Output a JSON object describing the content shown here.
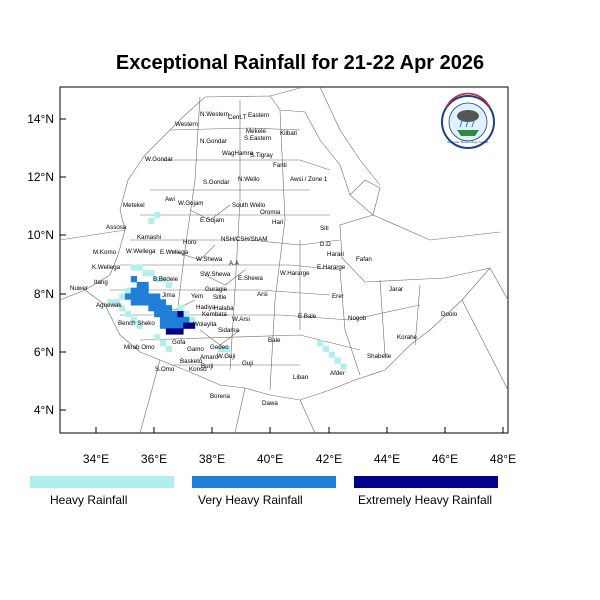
{
  "title": "Exceptional Rainfall for 21-22 Apr 2026",
  "axes": {
    "lat_ticks": [
      "14°N",
      "12°N",
      "10°N",
      "8°N",
      "6°N",
      "4°N"
    ],
    "lon_ticks": [
      "34°E",
      "36°E",
      "38°E",
      "40°E",
      "42°E",
      "44°E",
      "46°E",
      "48°E"
    ]
  },
  "legend": [
    {
      "label": "Heavy Rainfall",
      "color": "#b2eeee"
    },
    {
      "label": "Very Heavy Rainfall",
      "color": "#1f7fd8"
    },
    {
      "label": "Extremely Heavy Rainfall",
      "color": "#00008b"
    }
  ],
  "logo": {
    "text": "Ethiopian Meteorology Institute"
  },
  "zones": [
    "Western",
    "N.Western",
    "Cent.T",
    "Eastern",
    "Mekele",
    "S.Eastern",
    "Kilbati",
    "N.Gondar",
    "W.Gondar",
    "WagHamra",
    "S.Tigray",
    "Fanti",
    "S.Gondar",
    "Awsi / Zone 1",
    "N.Wello",
    "Metekel",
    "Awi",
    "W.Gojam",
    "South Wello",
    "E.Gojam",
    "Oromia",
    "Hari",
    "Assosa",
    "Kamashi",
    "Horo",
    "NSH/CSH/ShAM",
    "Siti",
    "D.D",
    "Harari",
    "Fafan",
    "M.Komo",
    "W.Wellega",
    "E.Wellega",
    "W.Shewa",
    "K.Wellega",
    "A.A",
    "E.Shewa",
    "W.Hararge",
    "E.Hararge",
    "Nuwer",
    "Itang",
    "B.Bedele",
    "SW.Shewa",
    "Guragie",
    "Arsi",
    "Erer",
    "Jarar",
    "Agnewak",
    "Jima",
    "Yem",
    "Siltie",
    "Hadiya",
    "Halaba",
    "Kembata",
    "Bench Sheko",
    "W.Arsi",
    "E.Bale",
    "Nogob",
    "Doolo",
    "Korahe",
    "Wolayita",
    "Sidama",
    "Gofa",
    "Bale",
    "Shabelle",
    "Mirab Omo",
    "Gedeo",
    "Amaro",
    "W.Guji",
    "Basketo",
    "Gamo",
    "Konso",
    "Burji",
    "S.Omo",
    "Guji",
    "Liban",
    "Afder",
    "Borena",
    "Dawa"
  ],
  "rain_cells": [
    [
      35.3,
      8.9,
      "heavy"
    ],
    [
      35.5,
      8.9,
      "heavy"
    ],
    [
      35.7,
      8.7,
      "heavy"
    ],
    [
      35.9,
      8.7,
      "heavy"
    ],
    [
      36.1,
      8.5,
      "heavy"
    ],
    [
      36.3,
      8.5,
      "heavy"
    ],
    [
      36.5,
      8.3,
      "heavy"
    ],
    [
      35.1,
      8.1,
      "heavy"
    ],
    [
      34.9,
      7.9,
      "heavy"
    ],
    [
      34.7,
      7.7,
      "heavy"
    ],
    [
      34.9,
      7.5,
      "heavy"
    ],
    [
      35.1,
      7.3,
      "heavy"
    ],
    [
      35.3,
      7.1,
      "heavy"
    ],
    [
      35.5,
      6.9,
      "heavy"
    ],
    [
      36.9,
      7.5,
      "heavy"
    ],
    [
      37.1,
      7.3,
      "heavy"
    ],
    [
      37.3,
      7.1,
      "heavy"
    ],
    [
      36.1,
      6.5,
      "heavy"
    ],
    [
      36.3,
      6.3,
      "heavy"
    ],
    [
      36.5,
      6.1,
      "heavy"
    ],
    [
      38.3,
      6.1,
      "heavy"
    ],
    [
      38.5,
      6.1,
      "heavy"
    ],
    [
      41.7,
      6.3,
      "heavy"
    ],
    [
      41.9,
      6.1,
      "heavy"
    ],
    [
      42.1,
      5.9,
      "heavy"
    ],
    [
      42.3,
      5.7,
      "heavy"
    ],
    [
      42.5,
      5.5,
      "heavy"
    ],
    [
      35.9,
      10.5,
      "heavy"
    ],
    [
      36.1,
      10.7,
      "heavy"
    ],
    [
      34.5,
      7.7,
      "heavy"
    ],
    [
      35.3,
      8.5,
      "very"
    ],
    [
      35.5,
      8.3,
      "very"
    ],
    [
      35.7,
      8.3,
      "very"
    ],
    [
      35.5,
      8.1,
      "very"
    ],
    [
      35.3,
      8.1,
      "very"
    ],
    [
      35.3,
      7.9,
      "very"
    ],
    [
      35.5,
      7.9,
      "very"
    ],
    [
      35.7,
      7.9,
      "very"
    ],
    [
      35.7,
      7.7,
      "very"
    ],
    [
      35.9,
      7.7,
      "very"
    ],
    [
      35.9,
      7.9,
      "very"
    ],
    [
      36.1,
      7.9,
      "very"
    ],
    [
      36.1,
      7.7,
      "very"
    ],
    [
      36.3,
      7.7,
      "very"
    ],
    [
      36.3,
      7.5,
      "very"
    ],
    [
      36.1,
      7.5,
      "very"
    ],
    [
      35.9,
      7.5,
      "very"
    ],
    [
      36.1,
      7.3,
      "very"
    ],
    [
      36.3,
      7.3,
      "very"
    ],
    [
      36.5,
      7.3,
      "very"
    ],
    [
      36.5,
      7.1,
      "very"
    ],
    [
      36.3,
      7.1,
      "very"
    ],
    [
      36.7,
      7.1,
      "very"
    ],
    [
      36.7,
      6.9,
      "very"
    ],
    [
      36.5,
      6.9,
      "very"
    ],
    [
      36.9,
      7.1,
      "very"
    ],
    [
      36.9,
      6.9,
      "very"
    ],
    [
      37.1,
      7.1,
      "very"
    ],
    [
      35.5,
      7.7,
      "very"
    ],
    [
      35.3,
      7.7,
      "very"
    ],
    [
      35.1,
      7.9,
      "very"
    ],
    [
      35.7,
      8.1,
      "very"
    ],
    [
      36.5,
      7.5,
      "very"
    ],
    [
      36.7,
      7.3,
      "very"
    ],
    [
      36.3,
      6.9,
      "very"
    ],
    [
      36.9,
      7.3,
      "extreme"
    ],
    [
      37.1,
      6.9,
      "extreme"
    ],
    [
      36.9,
      6.7,
      "extreme"
    ],
    [
      36.7,
      6.7,
      "extreme"
    ],
    [
      37.3,
      6.9,
      "extreme"
    ],
    [
      36.5,
      6.7,
      "extreme"
    ]
  ]
}
